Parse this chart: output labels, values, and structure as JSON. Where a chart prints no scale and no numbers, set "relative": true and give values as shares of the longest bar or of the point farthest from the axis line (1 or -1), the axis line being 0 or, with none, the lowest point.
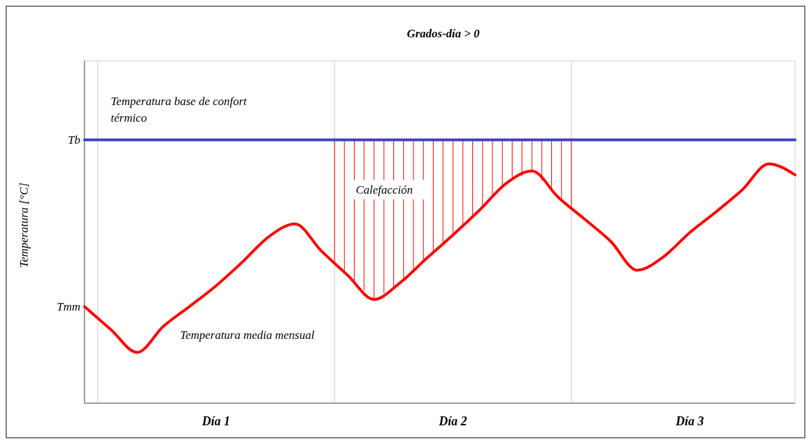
{
  "chart_data": {
    "type": "line",
    "relative": true,
    "title": "Grados-día > 0",
    "ylabel": "Temperatura [°C]",
    "categories": [
      null,
      null,
      null,
      null,
      null,
      "Día 1",
      null,
      null,
      null,
      null,
      null,
      null,
      null,
      null,
      "Día 2",
      null,
      null,
      null,
      null,
      null,
      null,
      null,
      null,
      "Día 3",
      null,
      null,
      null,
      null
    ],
    "series": [
      {
        "color": "#ff0000",
        "values": [
          0.367,
          0.28,
          0.193,
          0.292,
          0.368,
          0.446,
          0.536,
          0.632,
          0.681,
          0.578,
          0.486,
          0.394,
          0.458,
          0.55,
          0.639,
          0.732,
          0.833,
          0.882,
          0.782,
          0.699,
          0.614,
          0.505,
          0.556,
          0.648,
          0.727,
          0.811,
          0.909,
          0.867
        ]
      },
      {
        "name": "Temperatura base de confort térmico",
        "color": "#4040c8",
        "values": [
          1,
          1,
          1,
          1,
          1,
          1,
          1,
          1,
          1,
          1,
          1,
          1,
          1,
          1,
          1,
          1,
          1,
          1,
          1,
          1,
          1,
          1,
          1,
          1,
          1,
          1,
          1,
          1
        ]
      }
    ],
    "annotations": [
      "Tb",
      "Tmm",
      "Calefacción",
      "Temperatura media mensual"
    ],
    "legend": false
  }
}
